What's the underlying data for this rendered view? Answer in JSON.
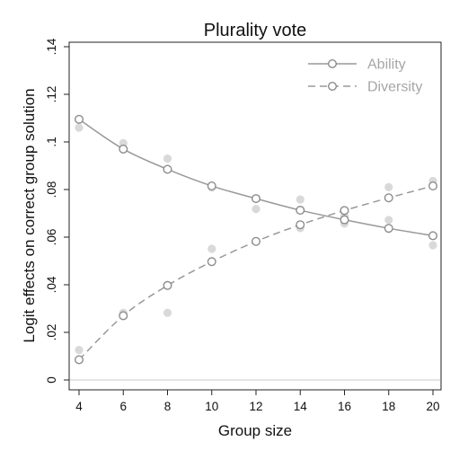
{
  "chart_data": {
    "type": "line",
    "title": "Plurality vote",
    "xlabel": "Group size",
    "ylabel": "Logit effects on correct group solution",
    "x": [
      4,
      6,
      8,
      10,
      12,
      14,
      16,
      18,
      20
    ],
    "xticks": [
      "4",
      "6",
      "8",
      "10",
      "12",
      "14",
      "16",
      "18",
      "20"
    ],
    "xlim": [
      4,
      20
    ],
    "yticks": [
      "0",
      ".02",
      ".04",
      ".06",
      ".08",
      ".1",
      ".12",
      ".14"
    ],
    "ylim": [
      0,
      0.14
    ],
    "grid": false,
    "legend_position": "top-right",
    "reference_line_y": 0,
    "series": [
      {
        "name": "Ability",
        "line_style": "solid",
        "color": "#999999",
        "fitted": [
          0.1095,
          0.097,
          0.0885,
          0.0815,
          0.0762,
          0.0713,
          0.0673,
          0.0637,
          0.0606
        ],
        "observed": [
          0.106,
          0.0995,
          0.093,
          0.0808,
          0.0718,
          0.0758,
          0.0657,
          0.0672,
          0.0566
        ]
      },
      {
        "name": "Diversity",
        "line_style": "dashed",
        "color": "#999999",
        "fitted": [
          0.0085,
          0.027,
          0.0397,
          0.0497,
          0.0582,
          0.0652,
          0.0712,
          0.0765,
          0.0815
        ],
        "observed": [
          0.0126,
          0.0282,
          0.0282,
          0.0551,
          0.0582,
          0.0638,
          0.0688,
          0.081,
          0.0836
        ]
      }
    ],
    "observed_color": "#d9d9d9"
  }
}
